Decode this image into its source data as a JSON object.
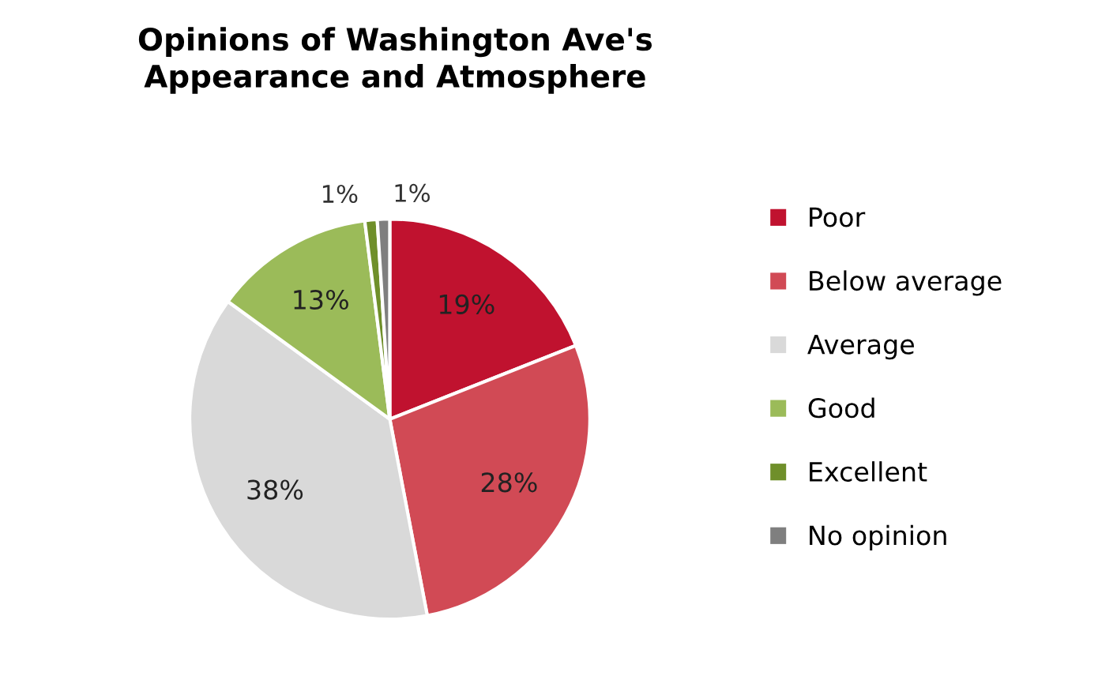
{
  "chart_data": {
    "type": "pie",
    "title": "Opinions of Washington Ave's\nAppearance and Atmosphere",
    "categories": [
      "Poor",
      "Below average",
      "Average",
      "Good",
      "Excellent",
      "No opinion"
    ],
    "values": [
      19,
      28,
      38,
      13,
      1,
      1
    ],
    "colors": [
      "#c0122f",
      "#d14a55",
      "#d9d9d9",
      "#9bbb59",
      "#6f8f2a",
      "#7f7f7f"
    ],
    "value_labels": [
      "19%",
      "28%",
      "38%",
      "13%",
      "1%",
      "1%"
    ],
    "legend": "right"
  }
}
